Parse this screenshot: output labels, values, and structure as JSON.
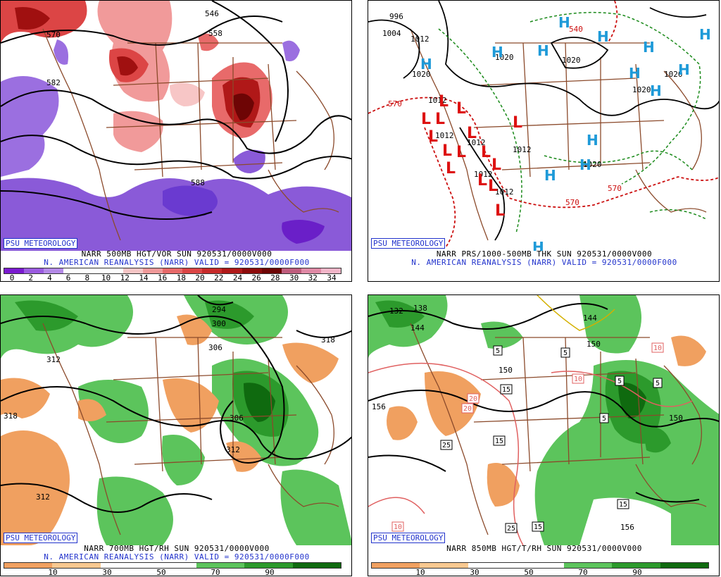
{
  "panels": [
    {
      "psu": "PSU METEOROLOGY",
      "line1": "NARR 500MB HGT/VOR SUN 920531/0000V000",
      "line2": "N. AMERICAN REANALYSIS (NARR) VALID = 920531/0000F000",
      "ticks": [
        "0",
        "2",
        "4",
        "6",
        "8",
        "10",
        "12",
        "14",
        "16",
        "18",
        "20",
        "22",
        "24",
        "26",
        "28",
        "30",
        "32",
        "34"
      ],
      "colors": [
        "#7a1ad0",
        "#9b5be0",
        "#b48ae8",
        "#ffffff",
        "#ffffff",
        "#ffffff",
        "#f7c6c6",
        "#f19a9a",
        "#e86a6a",
        "#dc4545",
        "#c82a2a",
        "#b01818",
        "#8e0b0b",
        "#6e0505",
        "#c05d7d",
        "#e08aa6",
        "#f3b6c9"
      ],
      "contours": [
        "570",
        "582",
        "546",
        "558",
        "588",
        "588"
      ]
    },
    {
      "psu": "PSU METEOROLOGY",
      "line1": "NARR PRS/1000-500MB THK SUN 920531/0000V000",
      "line2": "N. AMERICAN REANALYSIS (NARR) VALID = 920531/0000F000",
      "pressure_labels": [
        "996",
        "1004",
        "1012",
        "1020",
        "1020",
        "1020",
        "1012",
        "1012",
        "1012",
        "1012",
        "1012",
        "1012",
        "1020",
        "1020",
        "1020"
      ],
      "thickness_labels": [
        "570",
        "570",
        "570",
        "570",
        "540"
      ],
      "highs": "H",
      "lows": "L"
    },
    {
      "psu": "PSU METEOROLOGY",
      "line1": "NARR 700MB HGT/RH SUN 920531/0000V000",
      "line2": "N. AMERICAN REANALYSIS (NARR) VALID = 920531/0000F000",
      "ticks": [
        "10",
        "30",
        "50",
        "70",
        "90"
      ],
      "colors": [
        "#f0a060",
        "#f8c890",
        "#ffffff",
        "#ffffff",
        "#5cc45c",
        "#2c9a2c",
        "#0f6a0f"
      ],
      "contours": [
        "294",
        "300",
        "306",
        "306",
        "312",
        "312",
        "318",
        "318",
        "312"
      ]
    },
    {
      "psu": "PSU METEOROLOGY",
      "line1": "NARR 850MB HGT/T/RH SUN 920531/0000V000",
      "line2": "",
      "ticks": [
        "10",
        "30",
        "50",
        "70",
        "90"
      ],
      "colors": [
        "#f0a060",
        "#f8c890",
        "#ffffff",
        "#ffffff",
        "#5cc45c",
        "#2c9a2c",
        "#0f6a0f"
      ],
      "contours": [
        "132",
        "138",
        "144",
        "144",
        "150",
        "150",
        "156",
        "156",
        "150"
      ],
      "temps": [
        "5",
        "5",
        "5",
        "5",
        "5",
        "15",
        "15",
        "15",
        "15",
        "20",
        "20",
        "25",
        "25",
        "10",
        "10",
        "10",
        "10"
      ]
    }
  ]
}
